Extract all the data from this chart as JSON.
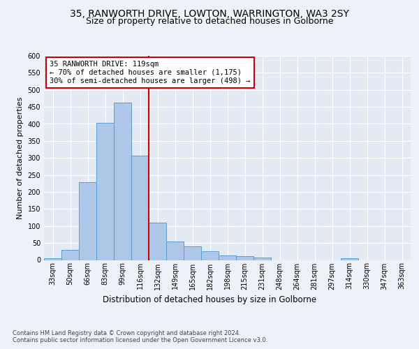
{
  "title_line1": "35, RANWORTH DRIVE, LOWTON, WARRINGTON, WA3 2SY",
  "title_line2": "Size of property relative to detached houses in Golborne",
  "xlabel": "Distribution of detached houses by size in Golborne",
  "ylabel": "Number of detached properties",
  "footer_line1": "Contains HM Land Registry data © Crown copyright and database right 2024.",
  "footer_line2": "Contains public sector information licensed under the Open Government Licence v3.0.",
  "annotation_line1": "35 RANWORTH DRIVE: 119sqm",
  "annotation_line2": "← 70% of detached houses are smaller (1,175)",
  "annotation_line3": "30% of semi-detached houses are larger (498) →",
  "bar_labels": [
    "33sqm",
    "50sqm",
    "66sqm",
    "83sqm",
    "99sqm",
    "116sqm",
    "132sqm",
    "149sqm",
    "165sqm",
    "182sqm",
    "198sqm",
    "215sqm",
    "231sqm",
    "248sqm",
    "264sqm",
    "281sqm",
    "297sqm",
    "314sqm",
    "330sqm",
    "347sqm",
    "363sqm"
  ],
  "bar_values": [
    6,
    30,
    228,
    403,
    463,
    307,
    110,
    54,
    39,
    26,
    14,
    11,
    7,
    0,
    0,
    0,
    0,
    5,
    0,
    0,
    0
  ],
  "bar_color": "#aec6e8",
  "bar_edge_color": "#5b9bd5",
  "vline_x": 5.5,
  "vline_color": "#cc0000",
  "ylim": [
    0,
    600
  ],
  "yticks": [
    0,
    50,
    100,
    150,
    200,
    250,
    300,
    350,
    400,
    450,
    500,
    550,
    600
  ],
  "bg_color": "#eef2f8",
  "plot_bg_color": "#e4eaf4",
  "annotation_box_color": "#ffffff",
  "annotation_box_edge": "#cc0000",
  "grid_color": "#ffffff",
  "title_fontsize": 10,
  "subtitle_fontsize": 9,
  "ylabel_fontsize": 8,
  "xlabel_fontsize": 8.5,
  "tick_fontsize": 7,
  "footer_fontsize": 6,
  "annotation_fontsize": 7.5
}
